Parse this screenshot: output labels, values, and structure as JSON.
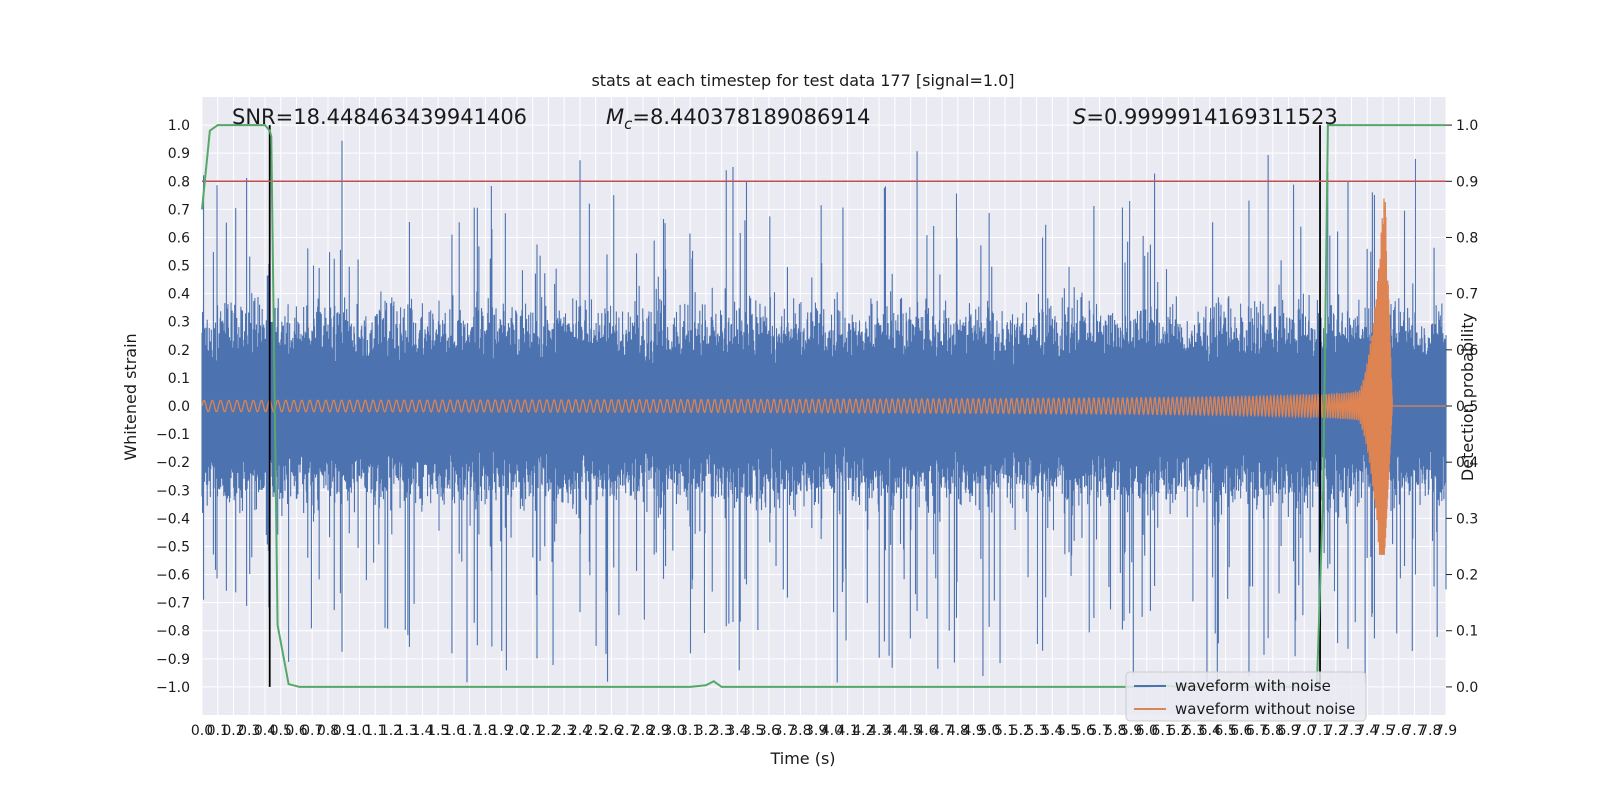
{
  "chart_data": {
    "type": "line",
    "title": "stats at each timestep for test data 177 [signal=1.0]",
    "xlabel": "Time (s)",
    "ylabel_left": "Whitened strain",
    "ylabel_right": "Detection probability",
    "xlim": [
      0.0,
      7.9
    ],
    "ylim_left": [
      -1.1,
      1.1
    ],
    "ylim_right": [
      -0.05,
      1.05
    ],
    "x_ticks": [
      0.0,
      0.1,
      0.2,
      0.3,
      0.4,
      0.5,
      0.6,
      0.7,
      0.8,
      0.9,
      1.0,
      1.1,
      1.2,
      1.3,
      1.4,
      1.5,
      1.6,
      1.7,
      1.8,
      1.9,
      2.0,
      2.1,
      2.2,
      2.3,
      2.4,
      2.5,
      2.6,
      2.7,
      2.8,
      2.9,
      3.0,
      3.1,
      3.2,
      3.3,
      3.4,
      3.5,
      3.6,
      3.7,
      3.8,
      3.9,
      4.0,
      4.1,
      4.2,
      4.3,
      4.4,
      4.5,
      4.6,
      4.7,
      4.8,
      4.9,
      5.0,
      5.1,
      5.2,
      5.3,
      5.4,
      5.5,
      5.6,
      5.7,
      5.8,
      5.9,
      6.0,
      6.1,
      6.2,
      6.3,
      6.4,
      6.5,
      6.6,
      6.7,
      6.8,
      6.9,
      7.0,
      7.1,
      7.2,
      7.3,
      7.4,
      7.5,
      7.6,
      7.7,
      7.8,
      7.9
    ],
    "x_tick_labels": [
      "0.0",
      "0.1",
      "0.2",
      "0.3",
      "0.4",
      "0.5",
      "0.6",
      "0.7",
      "0.8",
      "0.9",
      "1.0",
      "1.1",
      "1.2",
      "1.3",
      "1.4",
      "1.5",
      "1.6",
      "1.7",
      "1.8",
      "1.9",
      "2.0",
      "2.1",
      "2.2",
      "2.3",
      "2.4",
      "2.5",
      "2.6",
      "2.7",
      "2.8",
      "2.9",
      "3.0",
      "3.1",
      "3.2",
      "3.3",
      "3.4",
      "3.5",
      "3.6",
      "3.7",
      "3.8",
      "3.9",
      "4.0",
      "4.1",
      "4.2",
      "4.3",
      "4.4",
      "4.5",
      "4.6",
      "4.7",
      "4.8",
      "4.9",
      "5.0",
      "5.1",
      "5.2",
      "5.3",
      "5.4",
      "5.5",
      "5.6",
      "5.7",
      "5.8",
      "5.9",
      "6.0",
      "6.1",
      "6.2",
      "6.3",
      "6.4",
      "6.5",
      "6.6",
      "6.7",
      "6.8",
      "6.9",
      "7.0",
      "7.1",
      "7.2",
      "7.3",
      "7.4",
      "7.5",
      "7.6",
      "7.7",
      "7.8",
      "7.9"
    ],
    "y_left_ticks": [
      1.0,
      0.9,
      0.8,
      0.7,
      0.6,
      0.5,
      0.4,
      0.3,
      0.2,
      0.1,
      0.0,
      -0.1,
      -0.2,
      -0.3,
      -0.4,
      -0.5,
      -0.6,
      -0.7,
      -0.8,
      -0.9,
      -1.0
    ],
    "y_left_tick_labels": [
      "1.0",
      "0.9",
      "0.8",
      "0.7",
      "0.6",
      "0.5",
      "0.4",
      "0.3",
      "0.2",
      "0.1",
      "0.0",
      "−0.1",
      "−0.2",
      "−0.3",
      "−0.4",
      "−0.5",
      "−0.6",
      "−0.7",
      "−0.8",
      "−0.9",
      "−1.0"
    ],
    "y_right_ticks": [
      1.0,
      0.9,
      0.8,
      0.7,
      0.6,
      0.5,
      0.4,
      0.3,
      0.2,
      0.1,
      0.0
    ],
    "y_right_tick_labels": [
      "1.0",
      "0.9",
      "0.8",
      "0.7",
      "0.6",
      "0.5",
      "0.4",
      "0.3",
      "0.2",
      "0.1",
      "0.0"
    ],
    "annotations": {
      "snr": "SNR=18.448463439941406",
      "mc_symbol": "M",
      "mc_subscript": "c",
      "mc_value": "=8.440378189086914",
      "s_symbol": "S",
      "s_value": "=0.9999914169311523"
    },
    "threshold_right": 0.9,
    "vertical_markers_x": [
      0.43,
      7.1
    ],
    "series": [
      {
        "name": "waveform with noise",
        "color": "#4c72b0",
        "kind": "noise",
        "typical_peak": 0.4,
        "max_abs": 1.0
      },
      {
        "name": "waveform without noise",
        "color": "#dd8452",
        "kind": "chirp",
        "start_amplitude": 0.02,
        "peak_time": 7.51,
        "peak_max": 0.8,
        "peak_min": -0.53,
        "end_time": 7.56
      },
      {
        "name": "detection probability",
        "color": "#55a868",
        "axis": "right",
        "x": [
          0.0,
          0.05,
          0.1,
          0.4,
          0.43,
          0.44,
          0.48,
          0.55,
          0.62,
          3.1,
          3.2,
          3.25,
          3.3,
          3.35,
          6.0,
          6.1,
          6.2,
          7.0,
          7.05,
          7.08,
          7.12,
          7.15,
          7.9
        ],
        "y": [
          0.85,
          0.99,
          1.0,
          1.0,
          0.99,
          0.98,
          0.11,
          0.005,
          0.0,
          0.0,
          0.003,
          0.01,
          0.0,
          0.0,
          0.0,
          0.003,
          0.0,
          0.0,
          0.0,
          0.0,
          0.35,
          1.0,
          1.0
        ]
      }
    ],
    "threshold_color": "#c44e52",
    "marker_color": "#000000",
    "legend": [
      "waveform with noise",
      "waveform without noise"
    ],
    "legend_placement": "lower-right",
    "grid": true
  }
}
